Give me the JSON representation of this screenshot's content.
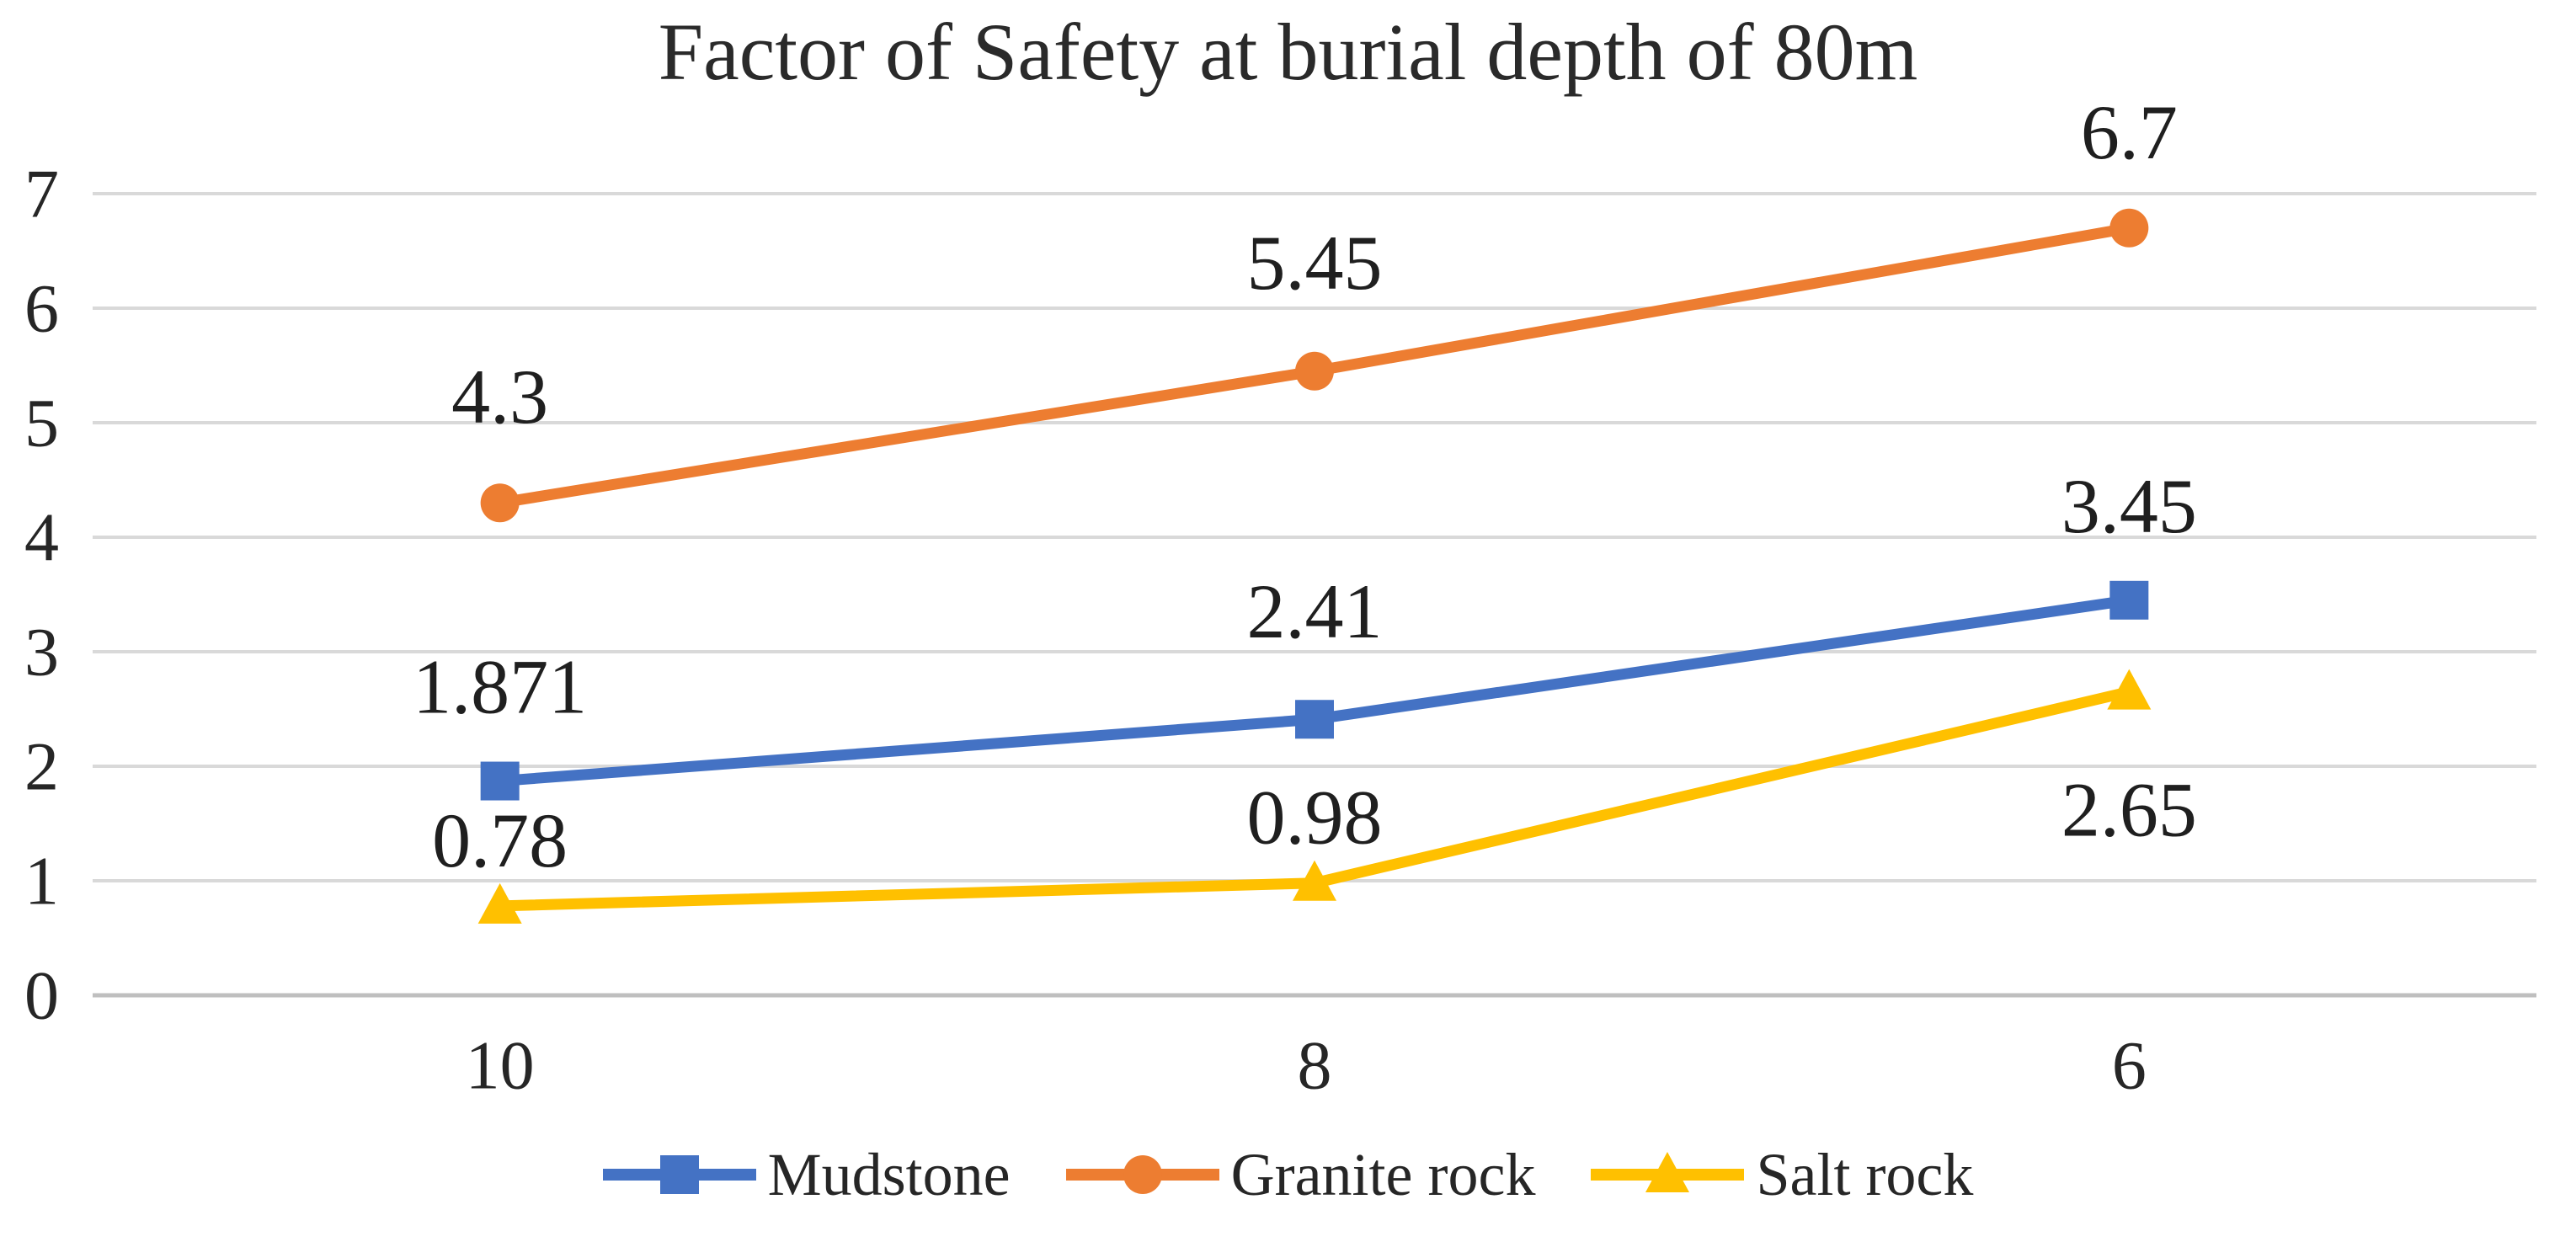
{
  "chart_data": {
    "type": "line",
    "title": "Factor of Safety at burial depth of 80m",
    "categories": [
      "10",
      "8",
      "6"
    ],
    "y_ticks": [
      "0",
      "1",
      "2",
      "3",
      "4",
      "5",
      "6",
      "7"
    ],
    "ylim": [
      0,
      7
    ],
    "grid": true,
    "legend_position": "bottom",
    "series": [
      {
        "name": "Mudstone",
        "color": "#4472C4",
        "marker": "square",
        "values": [
          1.871,
          2.41,
          3.45
        ],
        "data_labels": [
          "1.871",
          "2.41",
          "3.45"
        ]
      },
      {
        "name": "Granite rock",
        "color": "#ED7D31",
        "marker": "circle",
        "values": [
          4.3,
          5.45,
          6.7
        ],
        "data_labels": [
          "4.3",
          "5.45",
          "6.7"
        ]
      },
      {
        "name": "Salt rock",
        "color": "#FFC000",
        "marker": "triangle",
        "values": [
          0.78,
          0.98,
          2.65
        ],
        "data_labels": [
          "0.78",
          "0.98",
          "2.65"
        ]
      }
    ],
    "colors": {
      "gridline": "#D9D9D9",
      "baseline": "#BFBFBF",
      "text": "#262626"
    }
  }
}
